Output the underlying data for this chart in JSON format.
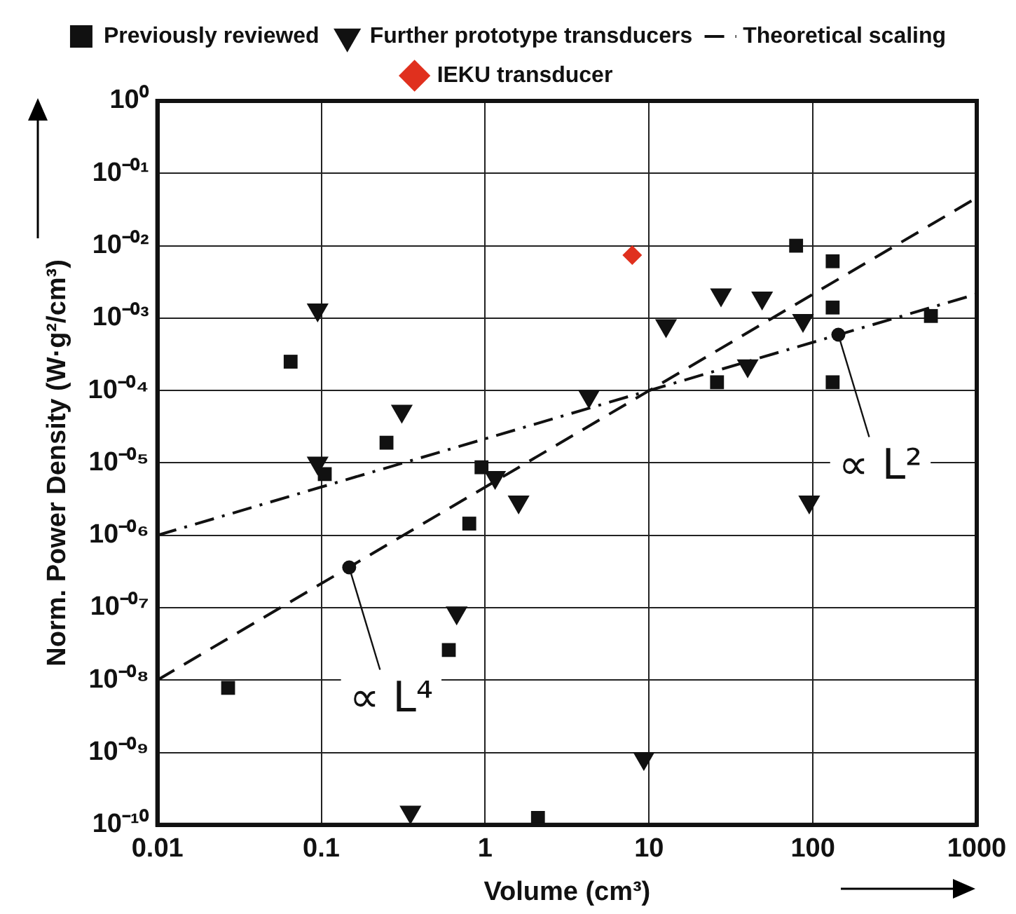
{
  "chart_data": {
    "type": "scatter",
    "xlabel": "Volume (cm³)",
    "ylabel": "Norm. Power Density (W·g²/cm³)",
    "log": "xy",
    "grid": true,
    "legend": "top",
    "xlim": [
      0.01,
      1000
    ],
    "xticks": [
      0.01,
      0.1,
      1,
      10,
      100,
      1000
    ],
    "ylim": [
      1e-10,
      1
    ],
    "yticks": [
      {
        "value": 1,
        "label": "10⁰"
      },
      {
        "value": 0.1,
        "label": "10⁻⁰¹"
      },
      {
        "value": 0.01,
        "label": "10⁻⁰²"
      },
      {
        "value": 0.001,
        "label": "10⁻⁰³"
      },
      {
        "value": 0.0001,
        "label": "10⁻⁰⁴"
      },
      {
        "value": 1e-05,
        "label": "10⁻⁰⁵"
      },
      {
        "value": 1e-06,
        "label": "10⁻⁰⁶"
      },
      {
        "value": 1e-07,
        "label": "10⁻⁰⁷"
      },
      {
        "value": 1e-08,
        "label": "10⁻⁰⁸"
      },
      {
        "value": 1e-09,
        "label": "10⁻⁰⁹"
      },
      {
        "value": 1e-10,
        "label": "10⁻¹⁰"
      }
    ],
    "series": [
      {
        "name": "Previously reviewed",
        "type": "scatter",
        "marker": "square",
        "color": "#111111",
        "x": [
          0.027,
          0.065,
          0.25,
          0.105,
          0.95,
          0.8,
          0.6,
          2.1,
          26,
          79,
          132,
          132,
          132,
          525
        ],
        "values": [
          7.8e-09,
          0.00025,
          1.9e-05,
          7e-06,
          8.7e-06,
          1.45e-06,
          2.6e-08,
          1.25e-10,
          0.00013,
          0.01,
          0.0061,
          0.0014,
          0.00013,
          0.00107
        ]
      },
      {
        "name": "Further prototype transducers",
        "type": "scatter",
        "marker": "triangle",
        "color": "#111111",
        "x": [
          0.095,
          0.31,
          0.095,
          0.67,
          0.35,
          1.15,
          1.6,
          9.3,
          95,
          4.3,
          12.7,
          27.5,
          49,
          40,
          87
        ],
        "values": [
          0.0013,
          5.2e-05,
          1e-05,
          8.5e-08,
          1.5e-10,
          6.3e-06,
          2.9e-06,
          8.3e-10,
          2.9e-06,
          8.3e-05,
          0.00079,
          0.0021,
          0.0019,
          0.00022,
          0.00093
        ]
      },
      {
        "name": "Theoretical scaling",
        "type": "line",
        "marker": "none",
        "line_style": "dashed",
        "color": "#111111",
        "x": [
          0.01,
          1000
        ],
        "values": [
          1e-08,
          0.046
        ]
      },
      {
        "type": "line",
        "marker": "none",
        "line_style": "dashdot",
        "color": "#111111",
        "x": [
          0.01,
          1000
        ],
        "values": [
          1e-06,
          0.00215
        ]
      },
      {
        "name": "IEKU transducer",
        "type": "scatter",
        "marker": "diamond",
        "color": "#e0301e",
        "x": [
          7.9
        ],
        "values": [
          0.0074
        ]
      }
    ],
    "annotations": [
      {
        "text": "∝ L⁴",
        "x": 0.148,
        "y": 3.6e-07
      },
      {
        "text": "∝ L²",
        "x": 143,
        "y": 0.00059
      }
    ]
  }
}
